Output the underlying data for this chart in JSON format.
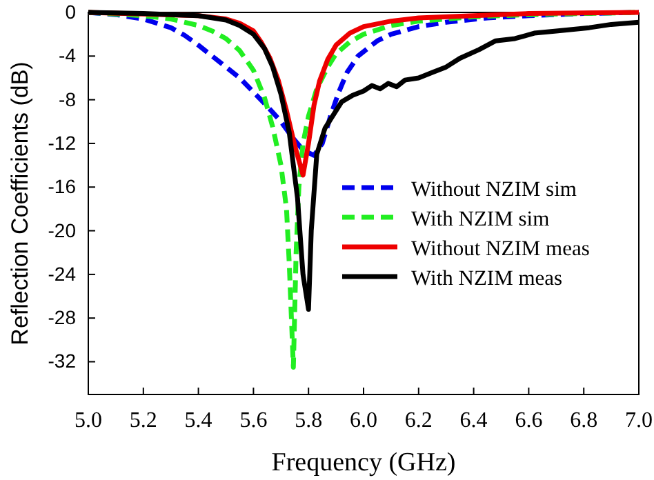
{
  "chart_data": {
    "type": "line",
    "xlabel": "Frequency (GHz)",
    "ylabel": "Reflection Coefficients (dB)",
    "xlim": [
      5.0,
      7.0
    ],
    "ylim": [
      -35,
      0
    ],
    "xticks": [
      {
        "value": 5.0,
        "label": "5.0"
      },
      5.2,
      5.4,
      5.6,
      5.8,
      {
        "value": 6.0,
        "label": "6.0"
      },
      6.2,
      6.4,
      6.6,
      6.8,
      {
        "value": 7.0,
        "label": "7.0"
      }
    ],
    "yticks": [
      -32,
      -28,
      -24,
      -20,
      -16,
      -12,
      -8,
      -4,
      0
    ],
    "legend": "bottom right",
    "grid": false,
    "marker": "none",
    "series": [
      {
        "name": "Without NZIM sim",
        "color": "#0000ee",
        "line_style": "dashed",
        "x": [
          5.0,
          5.1,
          5.2,
          5.3,
          5.35,
          5.4,
          5.45,
          5.5,
          5.55,
          5.6,
          5.65,
          5.7,
          5.74,
          5.78,
          5.82,
          5.85,
          5.88,
          5.91,
          5.94,
          5.98,
          6.05,
          6.1,
          6.2,
          6.3,
          6.45,
          6.6,
          6.8,
          7.0
        ],
        "values": [
          0,
          -0.2,
          -0.6,
          -1.4,
          -2.1,
          -3,
          -4,
          -5,
          -6,
          -7.3,
          -8.6,
          -10,
          -11.4,
          -12.6,
          -13.1,
          -12,
          -9.5,
          -7.3,
          -5.5,
          -4,
          -2.6,
          -2,
          -1.3,
          -0.9,
          -0.5,
          -0.3,
          -0.1,
          0
        ]
      },
      {
        "name": "With NZIM sim",
        "color": "#22ee22",
        "line_style": "dashed",
        "x": [
          5.0,
          5.2,
          5.3,
          5.4,
          5.45,
          5.5,
          5.55,
          5.6,
          5.64,
          5.67,
          5.7,
          5.72,
          5.73,
          5.745,
          5.755,
          5.765,
          5.78,
          5.8,
          5.83,
          5.87,
          5.9,
          5.95,
          6.0,
          6.1,
          6.2,
          6.4,
          6.6,
          7.0
        ],
        "values": [
          0,
          -0.3,
          -0.6,
          -1.2,
          -1.7,
          -2.4,
          -3.5,
          -5.3,
          -7.8,
          -10.5,
          -14,
          -18,
          -23,
          -32.5,
          -22,
          -16,
          -12,
          -9.5,
          -7,
          -5,
          -3.8,
          -2.7,
          -2,
          -1.2,
          -0.8,
          -0.4,
          -0.2,
          0
        ]
      },
      {
        "name": "Without NZIM meas",
        "color": "#ee0000",
        "line_style": "solid",
        "x": [
          5.0,
          5.4,
          5.5,
          5.55,
          5.6,
          5.63,
          5.66,
          5.69,
          5.72,
          5.75,
          5.78,
          5.8,
          5.82,
          5.84,
          5.87,
          5.9,
          5.95,
          6.0,
          6.1,
          6.2,
          6.4,
          6.6,
          7.0
        ],
        "values": [
          0,
          -0.3,
          -0.6,
          -1,
          -1.7,
          -2.8,
          -4.2,
          -6.2,
          -9,
          -12.2,
          -14.9,
          -12,
          -8.5,
          -6.3,
          -4.3,
          -3,
          -1.9,
          -1.3,
          -0.8,
          -0.5,
          -0.3,
          -0.1,
          0
        ]
      },
      {
        "name": "With NZIM meas",
        "color": "#000000",
        "line_style": "solid",
        "x": [
          5.0,
          5.2,
          5.4,
          5.5,
          5.55,
          5.6,
          5.64,
          5.67,
          5.7,
          5.73,
          5.76,
          5.78,
          5.8,
          5.81,
          5.83,
          5.86,
          5.88,
          5.92,
          5.96,
          6.0,
          6.03,
          6.06,
          6.09,
          6.12,
          6.15,
          6.2,
          6.25,
          6.3,
          6.35,
          6.42,
          6.48,
          6.55,
          6.62,
          6.7,
          6.82,
          6.9,
          7.0
        ],
        "values": [
          0,
          -0.1,
          -0.3,
          -0.7,
          -1.2,
          -2,
          -3.3,
          -5,
          -7.5,
          -11,
          -17,
          -24,
          -27.2,
          -20,
          -13,
          -10.6,
          -9.8,
          -8.2,
          -7.6,
          -7.2,
          -6.7,
          -7,
          -6.5,
          -6.8,
          -6.2,
          -6,
          -5.5,
          -5,
          -4.2,
          -3.4,
          -2.6,
          -2.4,
          -1.9,
          -1.7,
          -1.4,
          -1.1,
          -0.9
        ]
      }
    ]
  }
}
